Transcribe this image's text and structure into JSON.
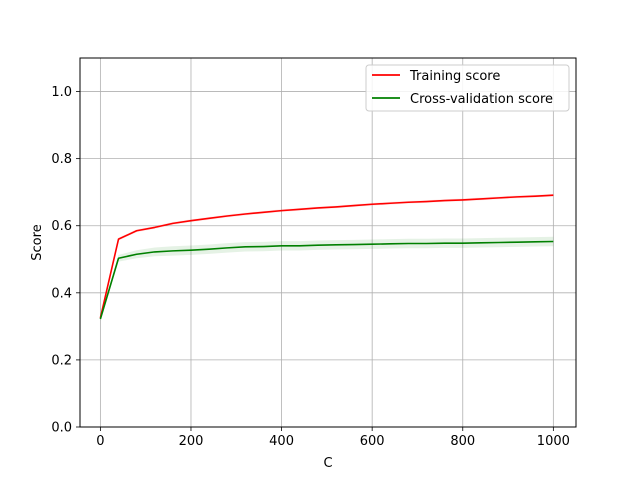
{
  "chart_data": {
    "type": "line",
    "title": "",
    "xlabel": "C",
    "ylabel": "Score",
    "xlim": [
      -45,
      1050
    ],
    "ylim": [
      0.0,
      1.1
    ],
    "xticks": [
      0,
      200,
      400,
      600,
      800,
      1000
    ],
    "xtick_labels": [
      "0",
      "200",
      "400",
      "600",
      "800",
      "1000"
    ],
    "yticks": [
      0.0,
      0.2,
      0.4,
      0.6,
      0.8,
      1.0
    ],
    "ytick_labels": [
      "0.0",
      "0.2",
      "0.4",
      "0.6",
      "0.8",
      "1.0"
    ],
    "grid": true,
    "legend_position": "top-right",
    "x": [
      0,
      40,
      80,
      120,
      160,
      200,
      240,
      280,
      320,
      360,
      400,
      440,
      480,
      520,
      560,
      600,
      640,
      680,
      720,
      760,
      800,
      840,
      880,
      920,
      960,
      1000
    ],
    "series": [
      {
        "name": "Training score",
        "color": "#ff0000",
        "band_color": "#ff0000",
        "values": [
          0.325,
          0.56,
          0.585,
          0.595,
          0.607,
          0.615,
          0.622,
          0.629,
          0.635,
          0.64,
          0.645,
          0.649,
          0.653,
          0.656,
          0.66,
          0.664,
          0.667,
          0.67,
          0.672,
          0.675,
          0.677,
          0.68,
          0.683,
          0.686,
          0.688,
          0.691
        ],
        "band": [
          0.004,
          0.004,
          0.004,
          0.004,
          0.004,
          0.004,
          0.004,
          0.004,
          0.004,
          0.004,
          0.004,
          0.004,
          0.004,
          0.004,
          0.004,
          0.004,
          0.004,
          0.004,
          0.004,
          0.004,
          0.004,
          0.004,
          0.004,
          0.004,
          0.004,
          0.004
        ]
      },
      {
        "name": "Cross-validation score",
        "color": "#008000",
        "band_color": "#008000",
        "values": [
          0.322,
          0.503,
          0.515,
          0.522,
          0.525,
          0.527,
          0.53,
          0.534,
          0.537,
          0.538,
          0.54,
          0.54,
          0.542,
          0.543,
          0.544,
          0.545,
          0.546,
          0.547,
          0.547,
          0.548,
          0.548,
          0.549,
          0.55,
          0.551,
          0.552,
          0.553
        ],
        "band": [
          0.006,
          0.01,
          0.012,
          0.013,
          0.014,
          0.014,
          0.014,
          0.014,
          0.014,
          0.014,
          0.014,
          0.014,
          0.014,
          0.014,
          0.014,
          0.014,
          0.014,
          0.014,
          0.014,
          0.014,
          0.014,
          0.014,
          0.014,
          0.014,
          0.014,
          0.014
        ]
      }
    ]
  }
}
